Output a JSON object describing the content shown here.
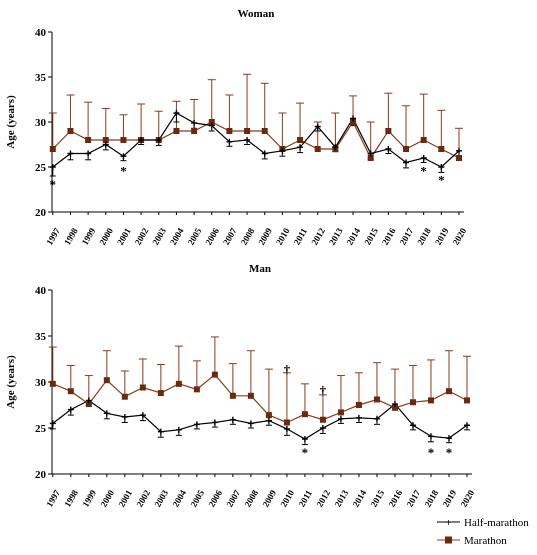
{
  "colors": {
    "half_marathon": "#000000",
    "marathon": "#8B3A1A",
    "marathon_marker": "#6B2A10",
    "axis": "#000000"
  },
  "legend": {
    "half_marathon": "Half-marathon",
    "marathon": "Marathon"
  },
  "chart_data": [
    {
      "type": "line",
      "title": "Woman",
      "xlabel": "",
      "ylabel": "Age (years)",
      "ylim": [
        20,
        40
      ],
      "yticks": [
        "20",
        "25",
        "30",
        "35",
        "40"
      ],
      "categories": [
        "1997",
        "1998",
        "1999",
        "2000",
        "2001",
        "2002",
        "2003",
        "2004",
        "2005",
        "2006",
        "2007",
        "2008",
        "2009",
        "2010",
        "2011",
        "2012",
        "2013",
        "2014",
        "2015",
        "2016",
        "2017",
        "2018",
        "2019",
        "2020"
      ],
      "series": [
        {
          "name": "Half-marathon",
          "marker": "plus",
          "values": [
            25.0,
            26.5,
            26.5,
            27.5,
            26.2,
            28.0,
            28.0,
            31.0,
            29.9,
            29.6,
            27.8,
            28.0,
            26.5,
            26.8,
            27.2,
            29.5,
            27.2,
            30.4,
            26.5,
            27.0,
            25.5,
            26.0,
            25.0,
            26.8
          ],
          "err_down": [
            1.0,
            0.7,
            0.7,
            0.6,
            0.5,
            0.5,
            0.6,
            1.0,
            0.6,
            0.6,
            0.5,
            0.5,
            0.6,
            0.6,
            0.6,
            0.5,
            0.5,
            0.8,
            0.6,
            0.5,
            0.6,
            0.5,
            0.6,
            0.6
          ]
        },
        {
          "name": "Marathon",
          "marker": "square",
          "values": [
            27.0,
            29.0,
            28.0,
            28.0,
            28.0,
            28.0,
            28.0,
            29.0,
            29.0,
            30.0,
            29.0,
            29.0,
            29.0,
            27.0,
            28.0,
            27.0,
            27.0,
            30.0,
            26.0,
            29.0,
            27.0,
            28.0,
            27.0,
            26.0
          ],
          "err_up": [
            4.0,
            4.0,
            4.2,
            3.5,
            2.8,
            4.0,
            3.2,
            3.3,
            3.5,
            4.7,
            4.0,
            6.3,
            5.3,
            4.0,
            4.1,
            3.0,
            4.0,
            2.9,
            4.0,
            4.2,
            4.8,
            5.1,
            4.3,
            3.3
          ]
        }
      ],
      "annotations": [
        {
          "year": "1997",
          "mark": "*",
          "value": 23.0
        },
        {
          "year": "2001",
          "mark": "*",
          "value": 24.5
        },
        {
          "year": "2018",
          "mark": "*",
          "value": 24.5
        },
        {
          "year": "2019",
          "mark": "*",
          "value": 23.5
        }
      ]
    },
    {
      "type": "line",
      "title": "Man",
      "xlabel": "",
      "ylabel": "Age (years)",
      "ylim": [
        20,
        40
      ],
      "yticks": [
        "20",
        "25",
        "30",
        "35",
        "40"
      ],
      "categories": [
        "1997",
        "1998",
        "1999",
        "2000",
        "2001",
        "2002",
        "2003",
        "2004",
        "2005",
        "2006",
        "2007",
        "2008",
        "2009",
        "2010",
        "2011",
        "2012",
        "2013",
        "2014",
        "2015",
        "2016",
        "2017",
        "2018",
        "2019",
        "2020"
      ],
      "series": [
        {
          "name": "Half-marathon",
          "marker": "plus",
          "values": [
            25.5,
            27.0,
            28.0,
            26.6,
            26.2,
            26.4,
            24.6,
            24.8,
            25.4,
            25.6,
            25.9,
            25.5,
            25.8,
            24.9,
            23.8,
            25.0,
            26.0,
            26.1,
            26.0,
            27.6,
            25.3,
            24.1,
            23.9,
            25.3
          ],
          "err_down": [
            0.6,
            0.6,
            0.5,
            0.6,
            0.6,
            0.6,
            0.6,
            0.6,
            0.5,
            0.5,
            0.5,
            0.5,
            0.5,
            0.7,
            0.6,
            0.6,
            0.5,
            0.5,
            0.6,
            0.6,
            0.5,
            0.6,
            0.5,
            0.5
          ]
        },
        {
          "name": "Marathon",
          "marker": "square",
          "values": [
            29.8,
            29.0,
            27.6,
            30.2,
            28.4,
            29.4,
            28.8,
            29.8,
            29.2,
            30.8,
            28.5,
            28.5,
            26.4,
            25.6,
            26.5,
            25.9,
            26.7,
            27.5,
            28.1,
            27.2,
            27.8,
            28.0,
            29.0,
            28.0
          ],
          "err_up": [
            4.0,
            2.8,
            3.1,
            3.2,
            2.8,
            3.1,
            3.1,
            4.1,
            3.1,
            4.1,
            3.5,
            4.9,
            5.0,
            5.4,
            3.3,
            2.7,
            4.0,
            3.5,
            4.0,
            4.2,
            4.0,
            4.4,
            4.4,
            4.8
          ]
        }
      ],
      "annotations": [
        {
          "year": "2010",
          "mark": "†",
          "value": 31.3
        },
        {
          "year": "2011",
          "mark": "*",
          "value": 22.3
        },
        {
          "year": "2012",
          "mark": "†",
          "value": 29.0
        },
        {
          "year": "2018",
          "mark": "*",
          "value": 22.3
        },
        {
          "year": "2019",
          "mark": "*",
          "value": 22.3
        }
      ]
    }
  ]
}
